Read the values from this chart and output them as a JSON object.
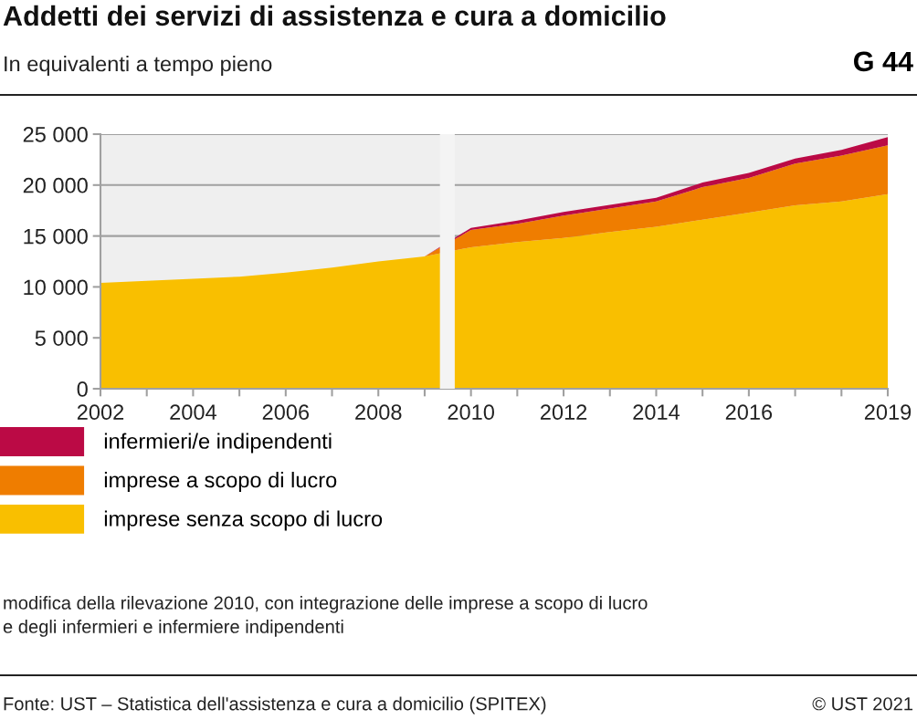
{
  "chart_data": {
    "type": "area",
    "stacked": true,
    "title": "Addetti dei servizi di assistenza e cura a domicilio",
    "subtitle": "In equivalenti a tempo pieno",
    "x": [
      2002,
      2003,
      2004,
      2005,
      2006,
      2007,
      2008,
      2009,
      2010,
      2011,
      2012,
      2013,
      2014,
      2015,
      2016,
      2017,
      2018,
      2019
    ],
    "series": [
      {
        "name": "imprese senza scopo di lucro",
        "color": "#f9bf00",
        "values": [
          10400,
          10600,
          10800,
          11000,
          11400,
          11900,
          12500,
          13000,
          13900,
          14400,
          14800,
          15400,
          15900,
          16600,
          17300,
          18000,
          18400,
          19100
        ]
      },
      {
        "name": "imprese a scopo di lucro",
        "color": "#ef7d00",
        "values": [
          0,
          0,
          0,
          0,
          0,
          0,
          0,
          0,
          1700,
          1800,
          2200,
          2300,
          2500,
          3200,
          3400,
          4100,
          4500,
          4800
        ]
      },
      {
        "name": "infermieri/e indipendenti",
        "color": "#bb0a45",
        "values": [
          0,
          0,
          0,
          0,
          0,
          0,
          0,
          0,
          200,
          300,
          350,
          350,
          350,
          450,
          500,
          500,
          550,
          800
        ]
      }
    ],
    "xlim": [
      2002,
      2019
    ],
    "xticks": [
      2002,
      {
        "value": 2003,
        "label": null
      },
      2004,
      {
        "value": 2005,
        "label": null
      },
      2006,
      {
        "value": 2007,
        "label": null
      },
      2008,
      {
        "value": 2009,
        "label": null
      },
      2010,
      {
        "value": 2011,
        "label": null
      },
      2012,
      {
        "value": 2013,
        "label": null
      },
      2014,
      {
        "value": 2015,
        "label": null
      },
      2016,
      {
        "value": 2017,
        "label": null
      },
      {
        "value": 2018,
        "label": null
      },
      2019
    ],
    "ylim": [
      0,
      25000
    ],
    "yticks": [
      0,
      {
        "value": 5000,
        "label": "5 000"
      },
      {
        "value": 10000,
        "label": "10 000"
      },
      {
        "value": 15000,
        "label": "15 000"
      },
      {
        "value": 20000,
        "label": "20 000"
      },
      {
        "value": 25000,
        "label": "25 000"
      }
    ],
    "grid": "y",
    "legend": "bottom",
    "bands": [
      {
        "axis": "x",
        "from": 2009.33,
        "to": 2009.65,
        "color": "#f4f4f4"
      }
    ],
    "annotations": [
      "G 44",
      "modifica della rilevazione 2010, con integrazione delle imprese a scopo di lucro\ne degli infermieri e infermiere indipendenti",
      "Fonte: UST – Statistica dell'assistenza e cura a domicilio (SPITEX)",
      "© UST 2021"
    ]
  }
}
